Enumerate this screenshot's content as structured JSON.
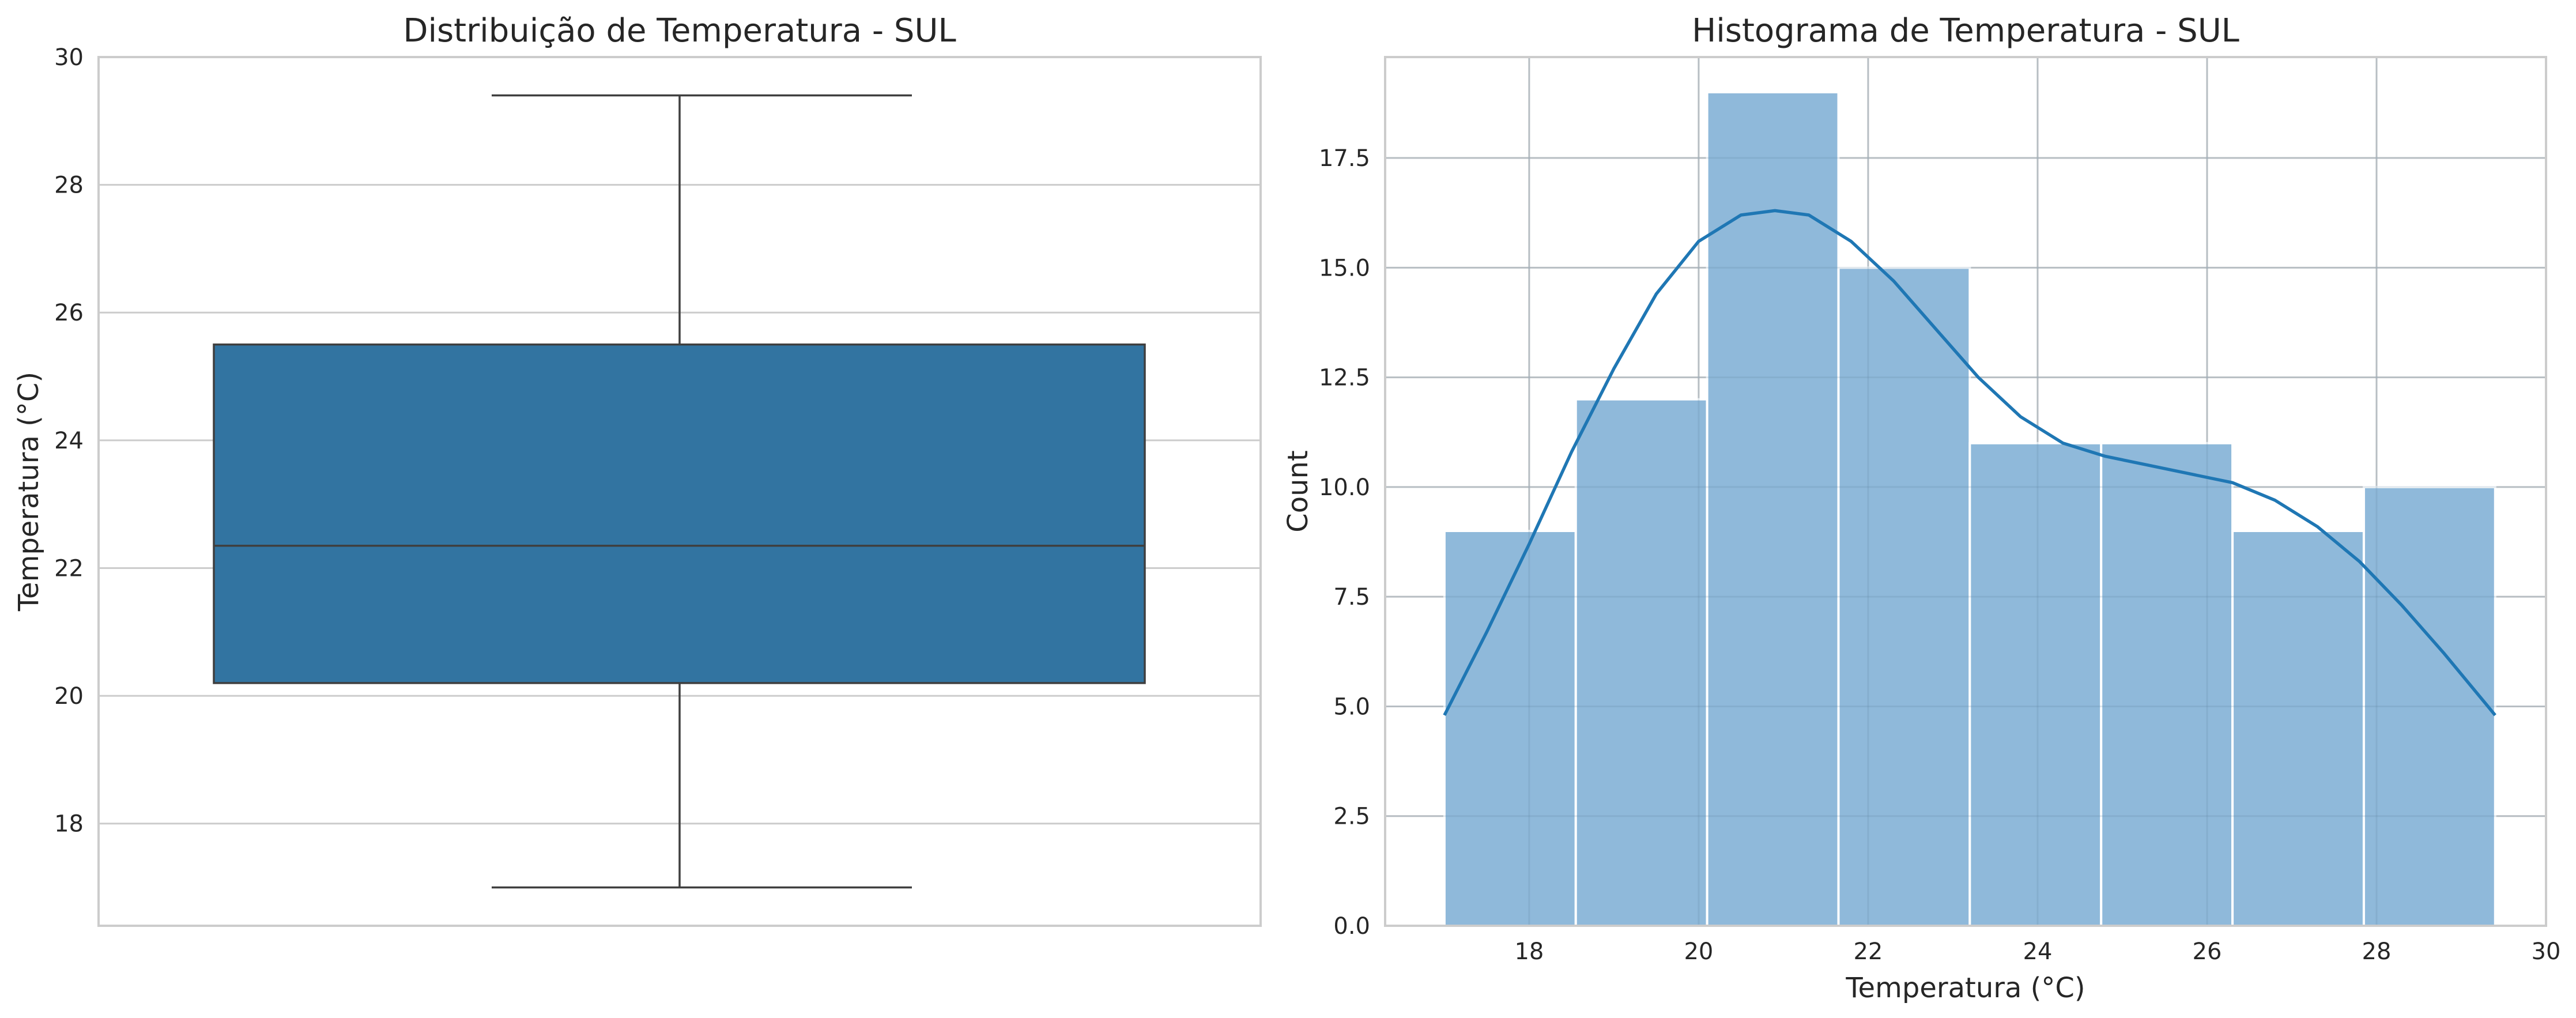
{
  "chart_data": [
    {
      "type": "box",
      "title": "Distribuição de Temperatura - SUL",
      "xlabel": "",
      "ylabel": "Temperatura (°C)",
      "ylim": [
        16.4,
        30
      ],
      "yticks": [
        18,
        20,
        22,
        24,
        26,
        28,
        30
      ],
      "grid": true,
      "box": {
        "min": 17.0,
        "q1": 20.2,
        "median": 22.35,
        "q3": 25.5,
        "max": 29.4
      },
      "colors": {
        "box": "#3274a1",
        "line": "#3f3f3f",
        "grid": "#cccccc",
        "spine": "#cccccc"
      }
    },
    {
      "type": "histogram",
      "title": "Histograma de Temperatura - SUL",
      "xlabel": "Temperatura (°C)",
      "ylabel": "Count",
      "xlim": [
        16.3,
        30
      ],
      "ylim": [
        0,
        19.8
      ],
      "xticks": [
        18,
        20,
        22,
        24,
        26,
        28,
        30
      ],
      "yticks": [
        0.0,
        2.5,
        5.0,
        7.5,
        10.0,
        12.5,
        15.0,
        17.5
      ],
      "ytick_labels": [
        "0.0",
        "2.5",
        "5.0",
        "7.5",
        "10.0",
        "12.5",
        "15.0",
        "17.5"
      ],
      "grid": true,
      "bins": [
        {
          "x0": 17.0,
          "x1": 18.55,
          "count": 9
        },
        {
          "x0": 18.55,
          "x1": 20.1,
          "count": 12
        },
        {
          "x0": 20.1,
          "x1": 21.65,
          "count": 19
        },
        {
          "x0": 21.65,
          "x1": 23.2,
          "count": 15
        },
        {
          "x0": 23.2,
          "x1": 24.75,
          "count": 11
        },
        {
          "x0": 24.75,
          "x1": 26.3,
          "count": 11
        },
        {
          "x0": 26.3,
          "x1": 27.85,
          "count": 9
        },
        {
          "x0": 27.85,
          "x1": 29.4,
          "count": 10
        }
      ],
      "kde": {
        "x": [
          17.0,
          17.5,
          18.0,
          18.5,
          19.0,
          19.5,
          20.0,
          20.5,
          20.9,
          21.3,
          21.8,
          22.3,
          22.8,
          23.3,
          23.8,
          24.3,
          24.8,
          25.3,
          25.8,
          26.3,
          26.8,
          27.3,
          27.8,
          28.3,
          28.8,
          29.4
        ],
        "y": [
          4.8,
          6.7,
          8.7,
          10.8,
          12.7,
          14.4,
          15.6,
          16.2,
          16.3,
          16.2,
          15.6,
          14.7,
          13.6,
          12.5,
          11.6,
          11.0,
          10.7,
          10.5,
          10.3,
          10.1,
          9.7,
          9.1,
          8.3,
          7.3,
          6.2,
          4.8
        ]
      },
      "colors": {
        "bar": "#8fb9da",
        "bar_edge": "#ffffff",
        "line": "#1f77b4",
        "grid": "#cccccc",
        "spine": "#cccccc"
      }
    }
  ]
}
